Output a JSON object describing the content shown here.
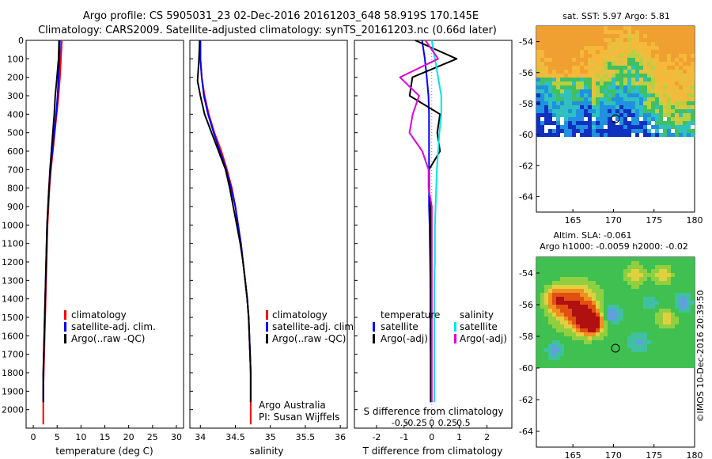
{
  "header": {
    "line1": "Argo profile: CS 5905031_23 02-Dec-2016 20161203_648 58.919S 170.145E",
    "line2": "Climatology: CARS2009. Satellite-adjusted climatology: synTS_20161203.nc (0.66d later)"
  },
  "depth_ticks": [
    "0",
    "100",
    "200",
    "300",
    "400",
    "500",
    "600",
    "700",
    "800",
    "900",
    "1000",
    "1100",
    "1200",
    "1300",
    "1400",
    "1500",
    "1600",
    "1700",
    "1800",
    "1900",
    "2000"
  ],
  "colors": {
    "climatology": "#ff0000",
    "satellite": "#0000ff",
    "argo": "#000000",
    "sal_satellite": "#00e5e5",
    "sal_argo": "#e000e0"
  },
  "panel_temp": {
    "xlabel": "temperature (deg C)",
    "xticks": [
      "0",
      "5",
      "10",
      "15",
      "20",
      "25",
      "30"
    ],
    "legend": [
      "climatology",
      "satellite-adj. clim.",
      "Argo(..raw -QC)"
    ]
  },
  "panel_sal": {
    "xlabel": "salinity",
    "xticks": [
      "34",
      "34.5",
      "35",
      "35.5",
      "36"
    ],
    "legend": [
      "climatology",
      "satellite-adj. clim.",
      "Argo(..raw -QC)"
    ],
    "credit1": "Argo Australia",
    "credit2": "PI: Susan Wijffels"
  },
  "panel_diff": {
    "xlabel": "T difference from climatology",
    "xticks": [
      "-2",
      "-1",
      "0",
      "1",
      "2"
    ],
    "top_label": "S difference from climatology",
    "top_ticks": [
      "-0.5",
      "-0.25",
      "0",
      "0.25",
      "0.5"
    ],
    "legend_t_title": "temperature",
    "legend_t": [
      "satellite",
      "Argo(-adj)"
    ],
    "legend_s_title": "salinity",
    "legend_s": [
      "satellite",
      "Argo(-adj)"
    ]
  },
  "map_sst": {
    "title": "sat. SST: 5.97 Argo: 5.81",
    "yticks": [
      "-54",
      "-56",
      "-58",
      "-60",
      "-62",
      "-64"
    ],
    "xticks": [
      "165",
      "170",
      "175",
      "180"
    ]
  },
  "map_sla": {
    "title1": "Altim. SLA: -0.061",
    "title2": "Argo h1000: -0.0059 h2000: -0.02",
    "yticks": [
      "-54",
      "-56",
      "-58",
      "-60",
      "-62",
      "-64"
    ],
    "xticks": [
      "165",
      "170",
      "175",
      "180"
    ]
  },
  "timestamp": "©IMOS 10-Dec-2016 20:39:50",
  "chart_data": [
    {
      "type": "line",
      "xlabel": "temperature (deg C)",
      "ylabel": "",
      "xlim": [
        -1.5,
        31.5
      ],
      "ylim": [
        2100,
        0
      ],
      "series": [
        {
          "name": "climatology",
          "x": [
            6.0,
            5.8,
            5.6,
            5.3,
            4.9,
            4.5,
            4.1,
            3.7,
            3.4,
            3.2,
            3.0,
            2.9,
            2.8,
            2.7,
            2.6,
            2.5,
            2.4,
            2.3,
            2.2,
            2.1,
            2.1
          ],
          "y": [
            0,
            100,
            200,
            300,
            400,
            500,
            600,
            700,
            800,
            900,
            1000,
            1100,
            1200,
            1300,
            1400,
            1500,
            1600,
            1700,
            1800,
            1900,
            2080
          ]
        },
        {
          "name": "satellite-adj. clim.",
          "x": [
            5.6,
            5.5,
            5.3,
            5.1,
            4.8,
            4.4,
            4.0,
            3.6,
            3.3,
            3.1,
            2.9,
            2.8,
            2.7,
            2.6,
            2.5,
            2.4,
            2.3,
            2.2,
            2.1,
            2.1
          ],
          "y": [
            0,
            100,
            200,
            300,
            400,
            500,
            600,
            700,
            800,
            900,
            1000,
            1100,
            1200,
            1300,
            1400,
            1500,
            1600,
            1700,
            1800,
            1960
          ]
        },
        {
          "name": "Argo(..raw -QC)",
          "x": [
            5.4,
            5.3,
            4.9,
            4.6,
            4.4,
            4.1,
            3.8,
            3.5,
            3.3,
            3.1,
            2.9,
            2.8,
            2.7,
            2.6,
            2.5,
            2.4,
            2.3,
            2.2,
            2.1,
            2.1
          ],
          "y": [
            0,
            100,
            220,
            300,
            400,
            500,
            600,
            700,
            800,
            900,
            1000,
            1100,
            1200,
            1300,
            1400,
            1500,
            1600,
            1700,
            1800,
            1960
          ]
        }
      ]
    },
    {
      "type": "line",
      "xlabel": "salinity",
      "ylabel": "",
      "xlim": [
        33.85,
        36.1
      ],
      "ylim": [
        2100,
        0
      ],
      "series": [
        {
          "name": "climatology",
          "x": [
            34.0,
            34.0,
            34.02,
            34.06,
            34.12,
            34.2,
            34.3,
            34.38,
            34.45,
            34.5,
            34.54,
            34.58,
            34.61,
            34.64,
            34.67,
            34.69,
            34.7,
            34.71,
            34.72,
            34.72,
            34.72
          ],
          "y": [
            0,
            100,
            200,
            300,
            400,
            500,
            600,
            700,
            800,
            900,
            1000,
            1100,
            1200,
            1300,
            1400,
            1500,
            1600,
            1700,
            1800,
            1900,
            2080
          ]
        },
        {
          "name": "satellite-adj. clim.",
          "x": [
            34.0,
            34.0,
            34.02,
            34.05,
            34.11,
            34.19,
            34.28,
            34.37,
            34.44,
            34.5,
            34.54,
            34.58,
            34.61,
            34.64,
            34.67,
            34.69,
            34.7,
            34.71,
            34.72,
            34.72
          ],
          "y": [
            0,
            100,
            200,
            300,
            400,
            500,
            600,
            700,
            800,
            900,
            1000,
            1100,
            1200,
            1300,
            1400,
            1500,
            1600,
            1700,
            1800,
            1960
          ]
        },
        {
          "name": "Argo(..raw -QC)",
          "x": [
            33.99,
            33.98,
            33.96,
            34.0,
            34.06,
            34.16,
            34.26,
            34.36,
            34.42,
            34.47,
            34.52,
            34.57,
            34.61,
            34.64,
            34.67,
            34.69,
            34.7,
            34.71,
            34.72,
            34.72
          ],
          "y": [
            0,
            100,
            220,
            300,
            400,
            500,
            600,
            700,
            800,
            900,
            1000,
            1100,
            1200,
            1300,
            1400,
            1500,
            1600,
            1700,
            1800,
            1960
          ]
        }
      ]
    },
    {
      "type": "line",
      "xlabel": "T difference from climatology",
      "ylabel": "",
      "xlim": [
        -2.8,
        2.9
      ],
      "ylim": [
        2100,
        0
      ],
      "series": [
        {
          "name": "temperature satellite",
          "x": [
            -0.35,
            -0.25,
            -0.18,
            -0.12,
            -0.1,
            -0.1,
            -0.1,
            -0.1,
            -0.1,
            -0.1,
            -0.08,
            -0.07,
            -0.06,
            -0.05,
            -0.05,
            -0.05,
            -0.05,
            -0.04,
            -0.04
          ],
          "y": [
            0,
            100,
            200,
            300,
            400,
            500,
            600,
            700,
            800,
            900,
            1000,
            1100,
            1200,
            1300,
            1400,
            1500,
            1600,
            1700,
            1960
          ]
        },
        {
          "name": "temperature Argo(-adj)",
          "x": [
            -0.6,
            0.9,
            -0.7,
            -0.8,
            0.3,
            0.2,
            0.3,
            -0.1,
            -0.1,
            -0.05,
            -0.05,
            -0.05,
            -0.05,
            -0.05,
            -0.04,
            -0.04,
            -0.04,
            -0.04,
            -0.04
          ],
          "y": [
            0,
            100,
            200,
            300,
            400,
            500,
            600,
            700,
            800,
            900,
            1000,
            1100,
            1200,
            1300,
            1400,
            1500,
            1600,
            1700,
            1960
          ]
        },
        {
          "name": "salinity satellite",
          "x": [
            0.0,
            0.05,
            0.1,
            0.15,
            0.15,
            0.12,
            0.1,
            0.08,
            0.07,
            0.06,
            0.05,
            0.05,
            0.05,
            0.04,
            0.04,
            0.04,
            0.04,
            0.04,
            0.04
          ],
          "y": [
            0,
            100,
            200,
            300,
            400,
            500,
            600,
            700,
            800,
            900,
            1000,
            1100,
            1200,
            1300,
            1400,
            1500,
            1600,
            1700,
            1960
          ]
        },
        {
          "name": "salinity Argo(-adj)",
          "x": [
            -0.1,
            0.1,
            -0.5,
            -0.2,
            -0.3,
            -0.35,
            -0.15,
            -0.05,
            -0.05,
            0.0,
            0.0,
            0.0,
            0.0,
            0.0,
            0.0,
            0.0,
            0.0,
            0.0,
            0.0
          ],
          "y": [
            0,
            100,
            200,
            300,
            400,
            500,
            600,
            700,
            800,
            900,
            1000,
            1100,
            1200,
            1300,
            1400,
            1500,
            1600,
            1700,
            1960
          ]
        }
      ]
    }
  ]
}
